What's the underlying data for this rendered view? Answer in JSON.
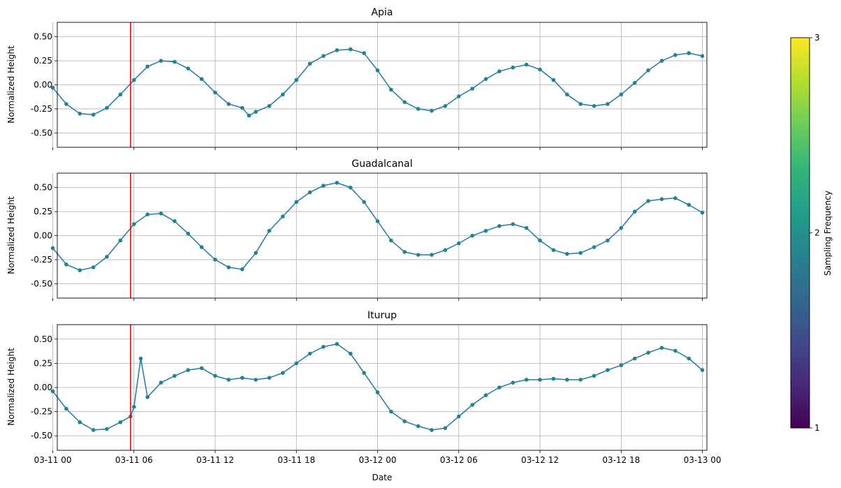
{
  "chart_data": [
    {
      "type": "line",
      "title": "Apia",
      "ylabel": "Normalized Height",
      "xlabel": "",
      "xlim": [
        "03-11 00",
        "03-13 00"
      ],
      "ylim": [
        -0.65,
        0.65
      ],
      "yticks": [
        "0.50",
        "0.25",
        "0.00",
        "-0.25",
        "-0.50"
      ],
      "grid": true,
      "event_line": {
        "x": "03-11 05:45",
        "color": "#ff0000"
      },
      "series": [
        {
          "x": [
            "03-11 00:00",
            "03-11 01:00",
            "03-11 02:00",
            "03-11 03:00",
            "03-11 04:00",
            "03-11 05:00",
            "03-11 06:00",
            "03-11 07:00",
            "03-11 08:00",
            "03-11 09:00",
            "03-11 10:00",
            "03-11 11:00",
            "03-11 12:00",
            "03-11 13:00",
            "03-11 14:00",
            "03-11 14:30",
            "03-11 15:00",
            "03-11 16:00",
            "03-11 17:00",
            "03-11 18:00",
            "03-11 19:00",
            "03-11 20:00",
            "03-11 21:00",
            "03-11 22:00",
            "03-11 23:00",
            "03-12 00:00",
            "03-12 01:00",
            "03-12 02:00",
            "03-12 03:00",
            "03-12 04:00",
            "03-12 05:00",
            "03-12 06:00",
            "03-12 07:00",
            "03-12 08:00",
            "03-12 09:00",
            "03-12 10:00",
            "03-12 11:00",
            "03-12 12:00",
            "03-12 13:00",
            "03-12 14:00",
            "03-12 15:00",
            "03-12 16:00",
            "03-12 17:00",
            "03-12 18:00",
            "03-12 19:00",
            "03-12 20:00",
            "03-12 21:00",
            "03-12 22:00",
            "03-12 23:00",
            "03-13 00:00"
          ],
          "y": [
            -0.03,
            -0.2,
            -0.3,
            -0.31,
            -0.24,
            -0.1,
            0.05,
            0.19,
            0.25,
            0.24,
            0.17,
            0.06,
            -0.08,
            -0.2,
            -0.24,
            -0.32,
            -0.28,
            -0.22,
            -0.1,
            0.05,
            0.22,
            0.3,
            0.36,
            0.37,
            0.33,
            0.15,
            -0.05,
            -0.18,
            -0.25,
            -0.27,
            -0.22,
            -0.12,
            -0.04,
            0.06,
            0.14,
            0.18,
            0.21,
            0.16,
            0.05,
            -0.1,
            -0.2,
            -0.22,
            -0.2,
            -0.1,
            0.02,
            0.15,
            0.25,
            0.31,
            0.33,
            0.3
          ]
        }
      ]
    },
    {
      "type": "line",
      "title": "Guadalcanal",
      "ylabel": "Normalized Height",
      "xlabel": "",
      "xlim": [
        "03-11 00",
        "03-13 00"
      ],
      "ylim": [
        -0.65,
        0.65
      ],
      "yticks": [
        "0.50",
        "0.25",
        "0.00",
        "-0.25",
        "-0.50"
      ],
      "grid": true,
      "event_line": {
        "x": "03-11 05:45",
        "color": "#ff0000"
      },
      "series": [
        {
          "x": [
            "03-11 00:00",
            "03-11 01:00",
            "03-11 02:00",
            "03-11 03:00",
            "03-11 04:00",
            "03-11 05:00",
            "03-11 06:00",
            "03-11 07:00",
            "03-11 08:00",
            "03-11 09:00",
            "03-11 10:00",
            "03-11 11:00",
            "03-11 12:00",
            "03-11 13:00",
            "03-11 14:00",
            "03-11 15:00",
            "03-11 16:00",
            "03-11 17:00",
            "03-11 18:00",
            "03-11 19:00",
            "03-11 20:00",
            "03-11 21:00",
            "03-11 22:00",
            "03-11 23:00",
            "03-12 00:00",
            "03-12 01:00",
            "03-12 02:00",
            "03-12 03:00",
            "03-12 04:00",
            "03-12 05:00",
            "03-12 06:00",
            "03-12 07:00",
            "03-12 08:00",
            "03-12 09:00",
            "03-12 10:00",
            "03-12 11:00",
            "03-12 12:00",
            "03-12 13:00",
            "03-12 14:00",
            "03-12 15:00",
            "03-12 16:00",
            "03-12 17:00",
            "03-12 18:00",
            "03-12 19:00",
            "03-12 20:00",
            "03-12 21:00",
            "03-12 22:00",
            "03-12 23:00",
            "03-13 00:00"
          ],
          "y": [
            -0.13,
            -0.3,
            -0.36,
            -0.33,
            -0.22,
            -0.05,
            0.12,
            0.22,
            0.23,
            0.15,
            0.02,
            -0.12,
            -0.25,
            -0.33,
            -0.35,
            -0.18,
            0.05,
            0.2,
            0.35,
            0.45,
            0.52,
            0.55,
            0.5,
            0.35,
            0.15,
            -0.05,
            -0.17,
            -0.2,
            -0.2,
            -0.15,
            -0.08,
            0.0,
            0.05,
            0.1,
            0.12,
            0.08,
            -0.05,
            -0.15,
            -0.19,
            -0.18,
            -0.12,
            -0.05,
            0.08,
            0.25,
            0.36,
            0.38,
            0.39,
            0.32,
            0.24
          ]
        }
      ]
    },
    {
      "type": "line",
      "title": "Iturup",
      "ylabel": "Normalized Height",
      "xlabel": "Date",
      "xlim": [
        "03-11 00",
        "03-13 00"
      ],
      "ylim": [
        -0.65,
        0.65
      ],
      "yticks": [
        "0.50",
        "0.25",
        "0.00",
        "-0.25",
        "-0.50"
      ],
      "xticks": [
        "03-11 00",
        "03-11 06",
        "03-11 12",
        "03-11 18",
        "03-12 00",
        "03-12 06",
        "03-12 12",
        "03-12 18",
        "03-13 00"
      ],
      "grid": true,
      "event_line": {
        "x": "03-11 05:45",
        "color": "#ff0000"
      },
      "series": [
        {
          "x": [
            "03-11 00:00",
            "03-11 01:00",
            "03-11 02:00",
            "03-11 03:00",
            "03-11 04:00",
            "03-11 05:00",
            "03-11 05:45",
            "03-11 06:00",
            "03-11 06:30",
            "03-11 07:00",
            "03-11 08:00",
            "03-11 09:00",
            "03-11 10:00",
            "03-11 11:00",
            "03-11 12:00",
            "03-11 13:00",
            "03-11 14:00",
            "03-11 15:00",
            "03-11 16:00",
            "03-11 17:00",
            "03-11 18:00",
            "03-11 19:00",
            "03-11 20:00",
            "03-11 21:00",
            "03-11 22:00",
            "03-11 23:00",
            "03-12 00:00",
            "03-12 01:00",
            "03-12 02:00",
            "03-12 03:00",
            "03-12 04:00",
            "03-12 05:00",
            "03-12 06:00",
            "03-12 07:00",
            "03-12 08:00",
            "03-12 09:00",
            "03-12 10:00",
            "03-12 11:00",
            "03-12 12:00",
            "03-12 13:00",
            "03-12 14:00",
            "03-12 15:00",
            "03-12 16:00",
            "03-12 17:00",
            "03-12 18:00",
            "03-12 19:00",
            "03-12 20:00",
            "03-12 21:00",
            "03-12 22:00",
            "03-12 23:00",
            "03-13 00:00"
          ],
          "y": [
            -0.04,
            -0.22,
            -0.36,
            -0.44,
            -0.43,
            -0.36,
            -0.3,
            -0.2,
            0.3,
            -0.1,
            0.05,
            0.12,
            0.18,
            0.2,
            0.12,
            0.08,
            0.1,
            0.08,
            0.1,
            0.15,
            0.25,
            0.35,
            0.42,
            0.45,
            0.35,
            0.15,
            -0.05,
            -0.25,
            -0.35,
            -0.4,
            -0.44,
            -0.42,
            -0.3,
            -0.18,
            -0.08,
            0.0,
            0.05,
            0.08,
            0.08,
            0.09,
            0.08,
            0.08,
            0.12,
            0.18,
            0.23,
            0.3,
            0.36,
            0.41,
            0.38,
            0.3,
            0.18
          ]
        }
      ]
    }
  ],
  "colorbar": {
    "label": "Sampling Frequency",
    "ticks": [
      "1",
      "2",
      "3"
    ],
    "range": [
      1,
      3
    ],
    "colormap": [
      "#440154",
      "#482878",
      "#3e4a89",
      "#31688e",
      "#26828e",
      "#1f9e89",
      "#35b779",
      "#6ece58",
      "#b5de2b",
      "#fde725"
    ]
  },
  "colors": {
    "line": "#1f77b4",
    "marker": "#21838c",
    "event": "#ff0000",
    "grid": "#b0b0b0"
  }
}
